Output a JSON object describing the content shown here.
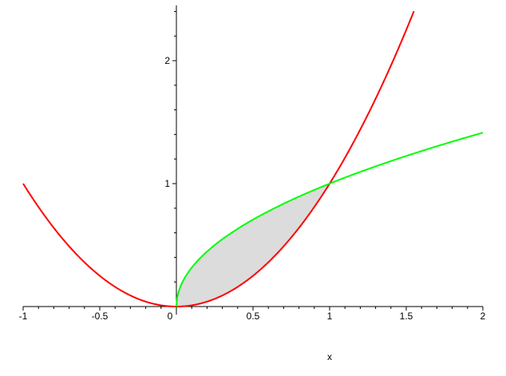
{
  "chart_data": {
    "type": "line",
    "xlabel": "x",
    "ylabel": "",
    "xlim": [
      -1,
      2
    ],
    "ylim": [
      0,
      2.45
    ],
    "x_tick_labels": [
      "-1",
      "-0.5",
      "0",
      "0.5",
      "1",
      "1.5",
      "2"
    ],
    "x_ticks": [
      -1,
      -0.5,
      0,
      0.5,
      1,
      1.5,
      2
    ],
    "y_tick_labels": [
      "1",
      "2"
    ],
    "y_ticks": [
      1,
      2
    ],
    "grid": false,
    "series": [
      {
        "expression": "x^2",
        "color": "#ff0000",
        "x_range": [
          -1,
          1.55
        ]
      },
      {
        "expression": "sqrt(x)",
        "color": "#00ff00",
        "x_range": [
          0,
          2
        ]
      }
    ],
    "shaded_region": {
      "between": [
        "sqrt(x)",
        "x^2"
      ],
      "x_range": [
        0,
        1
      ],
      "color": "#dcdcdc"
    }
  }
}
